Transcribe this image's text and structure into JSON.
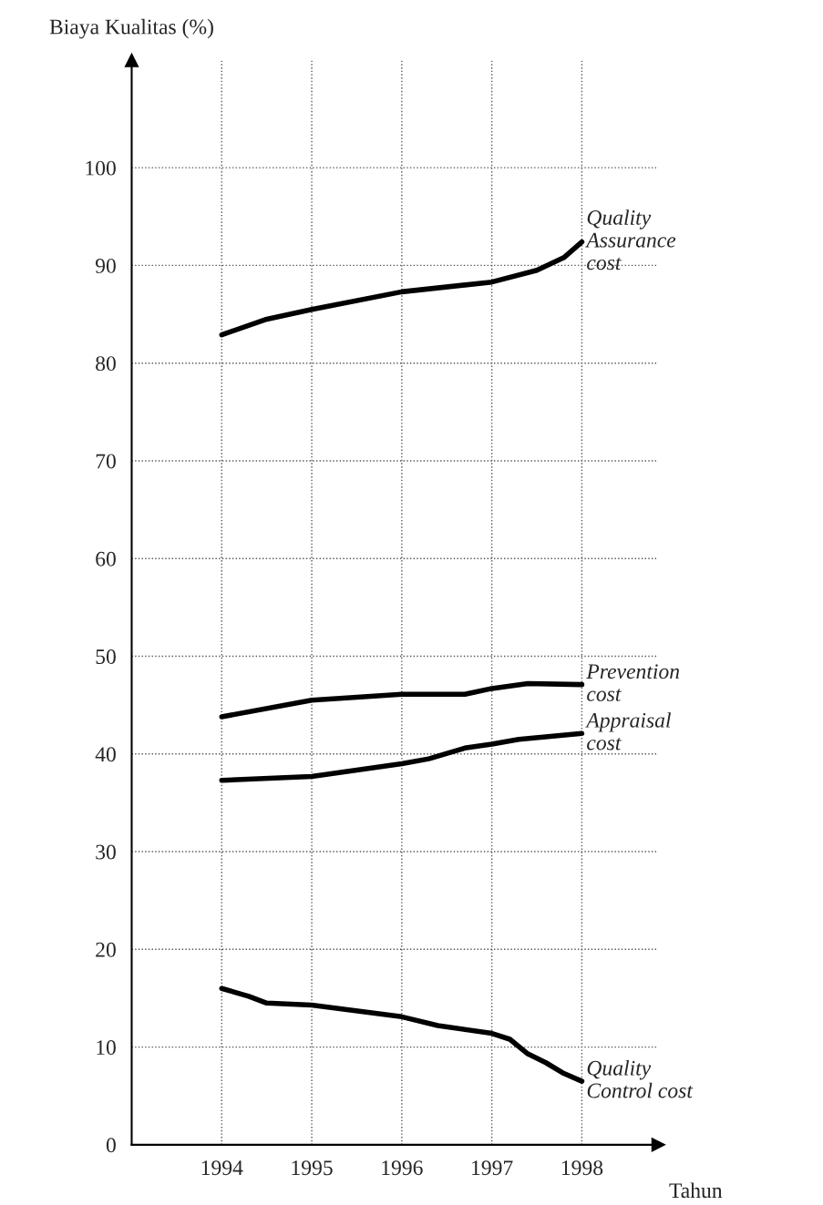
{
  "chart_data": {
    "type": "line",
    "ylabel": "Biaya Kualitas (%)",
    "xlabel": "Tahun",
    "xlim": [
      1993,
      1998.85
    ],
    "ylim": [
      0,
      111
    ],
    "xticks": [
      1994,
      1995,
      1996,
      1997,
      1998
    ],
    "yticks": [
      0,
      10,
      20,
      30,
      40,
      50,
      60,
      70,
      80,
      90,
      100
    ],
    "grid": true,
    "legend": false,
    "line_style": "solid",
    "marker": "none",
    "series": [
      {
        "name": "Quality\nAssurance\ncost",
        "color": "#000000",
        "x": [
          1994,
          1994.5,
          1995,
          1996,
          1997,
          1997.5,
          1997.8,
          1998
        ],
        "values": [
          82.9,
          84.5,
          85.5,
          87.3,
          88.3,
          89.5,
          90.8,
          92.4
        ]
      },
      {
        "name": "Prevention\ncost",
        "color": "#000000",
        "x": [
          1994,
          1995,
          1996,
          1996.7,
          1997,
          1997.4,
          1998
        ],
        "values": [
          43.8,
          45.5,
          46.1,
          46.1,
          46.7,
          47.2,
          47.1
        ]
      },
      {
        "name": "Appraisal\ncost",
        "color": "#000000",
        "x": [
          1994,
          1995,
          1996,
          1996.3,
          1996.7,
          1997,
          1997.3,
          1998
        ],
        "values": [
          37.3,
          37.7,
          39.0,
          39.5,
          40.6,
          41.0,
          41.5,
          42.1
        ]
      },
      {
        "name": "Quality\nControl cost",
        "color": "#000000",
        "x": [
          1994,
          1994.3,
          1994.5,
          1995,
          1996,
          1996.4,
          1997,
          1997.2,
          1997.4,
          1997.6,
          1997.8,
          1998
        ],
        "values": [
          16.0,
          15.2,
          14.5,
          14.3,
          13.1,
          12.2,
          11.4,
          10.8,
          9.3,
          8.4,
          7.3,
          6.5
        ]
      }
    ]
  }
}
